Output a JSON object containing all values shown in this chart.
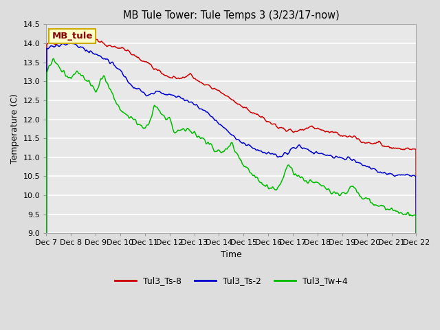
{
  "title": "MB Tule Tower: Tule Temps 3 (3/23/17-now)",
  "xlabel": "Time",
  "ylabel": "Temperature (C)",
  "ylim": [
    9.0,
    14.5
  ],
  "yticks": [
    9.0,
    9.5,
    10.0,
    10.5,
    11.0,
    11.5,
    12.0,
    12.5,
    13.0,
    13.5,
    14.0,
    14.5
  ],
  "xtick_labels": [
    "Dec 7",
    "Dec 8",
    "Dec 9",
    "Dec 10",
    "Dec 11",
    "Dec 12",
    "Dec 13",
    "Dec 14",
    "Dec 15",
    "Dec 16",
    "Dec 17",
    "Dec 18",
    "Dec 19",
    "Dec 20",
    "Dec 21",
    "Dec 22"
  ],
  "fig_bg_color": "#dddddd",
  "plot_bg_color": "#e8e8e8",
  "grid_color": "#ffffff",
  "line_colors": {
    "red": "#cc0000",
    "blue": "#0000cc",
    "green": "#00bb00"
  },
  "legend_labels": [
    "Tul3_Ts-8",
    "Tul3_Ts-2",
    "Tul3_Tw+4"
  ],
  "watermark_text": "MB_tule",
  "watermark_bg": "#ffffcc",
  "watermark_border": "#ccaa00"
}
